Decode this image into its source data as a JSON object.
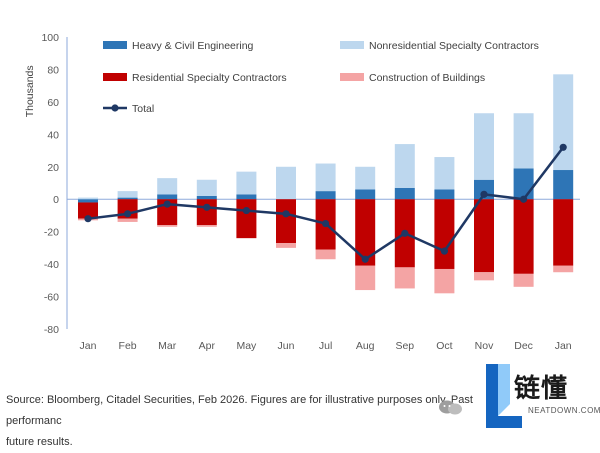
{
  "chart_data": {
    "type": "bar",
    "stacked": true,
    "ylabel": "Thousands",
    "ylim": [
      -80,
      100
    ],
    "yticks": [
      100,
      80,
      60,
      40,
      20,
      0,
      -20,
      -40,
      -60,
      -80
    ],
    "categories": [
      "Jan",
      "Feb",
      "Mar",
      "Apr",
      "May",
      "Jun",
      "Jul",
      "Aug",
      "Sep",
      "Oct",
      "Nov",
      "Dec",
      "Jan"
    ],
    "series": [
      {
        "name": "Heavy & Civil Engineering",
        "color": "#2e75b6",
        "kind": "bar",
        "values": [
          -2,
          1,
          3,
          2,
          3,
          0,
          5,
          6,
          7,
          6,
          12,
          19,
          18
        ]
      },
      {
        "name": "Nonresidential Specialty Contractors",
        "color": "#bdd7ee",
        "kind": "bar",
        "values": [
          1,
          4,
          10,
          10,
          14,
          20,
          17,
          14,
          27,
          20,
          41,
          34,
          59
        ]
      },
      {
        "name": "Residential Specialty Contractors",
        "color": "#c00000",
        "kind": "bar",
        "values": [
          -10,
          -12,
          -16,
          -16,
          -24,
          -27,
          -31,
          -41,
          -42,
          -43,
          -45,
          -46,
          -41
        ]
      },
      {
        "name": "Construction of Buildings",
        "color": "#f4a4a4",
        "kind": "bar",
        "values": [
          -1,
          -2,
          -1,
          -1,
          0,
          -3,
          -6,
          -15,
          -13,
          -15,
          -5,
          -8,
          -4
        ]
      },
      {
        "name": "Total",
        "color": "#1f3864",
        "kind": "line",
        "values": [
          -12,
          -9,
          -3,
          -5,
          -7,
          -9,
          -15,
          -37,
          -21,
          -32,
          3,
          0,
          32
        ]
      }
    ],
    "legend_position": "top",
    "grid": false
  },
  "footnote": {
    "line1": "Source: Bloomberg, Citadel Securities, Feb 2026. Figures are for illustrative purposes only. Past performanc",
    "line2": "future results."
  },
  "logo": {
    "cn": "链懂",
    "en": "NEATDOWN.COM"
  },
  "watermark_icon": "wechat-icon"
}
